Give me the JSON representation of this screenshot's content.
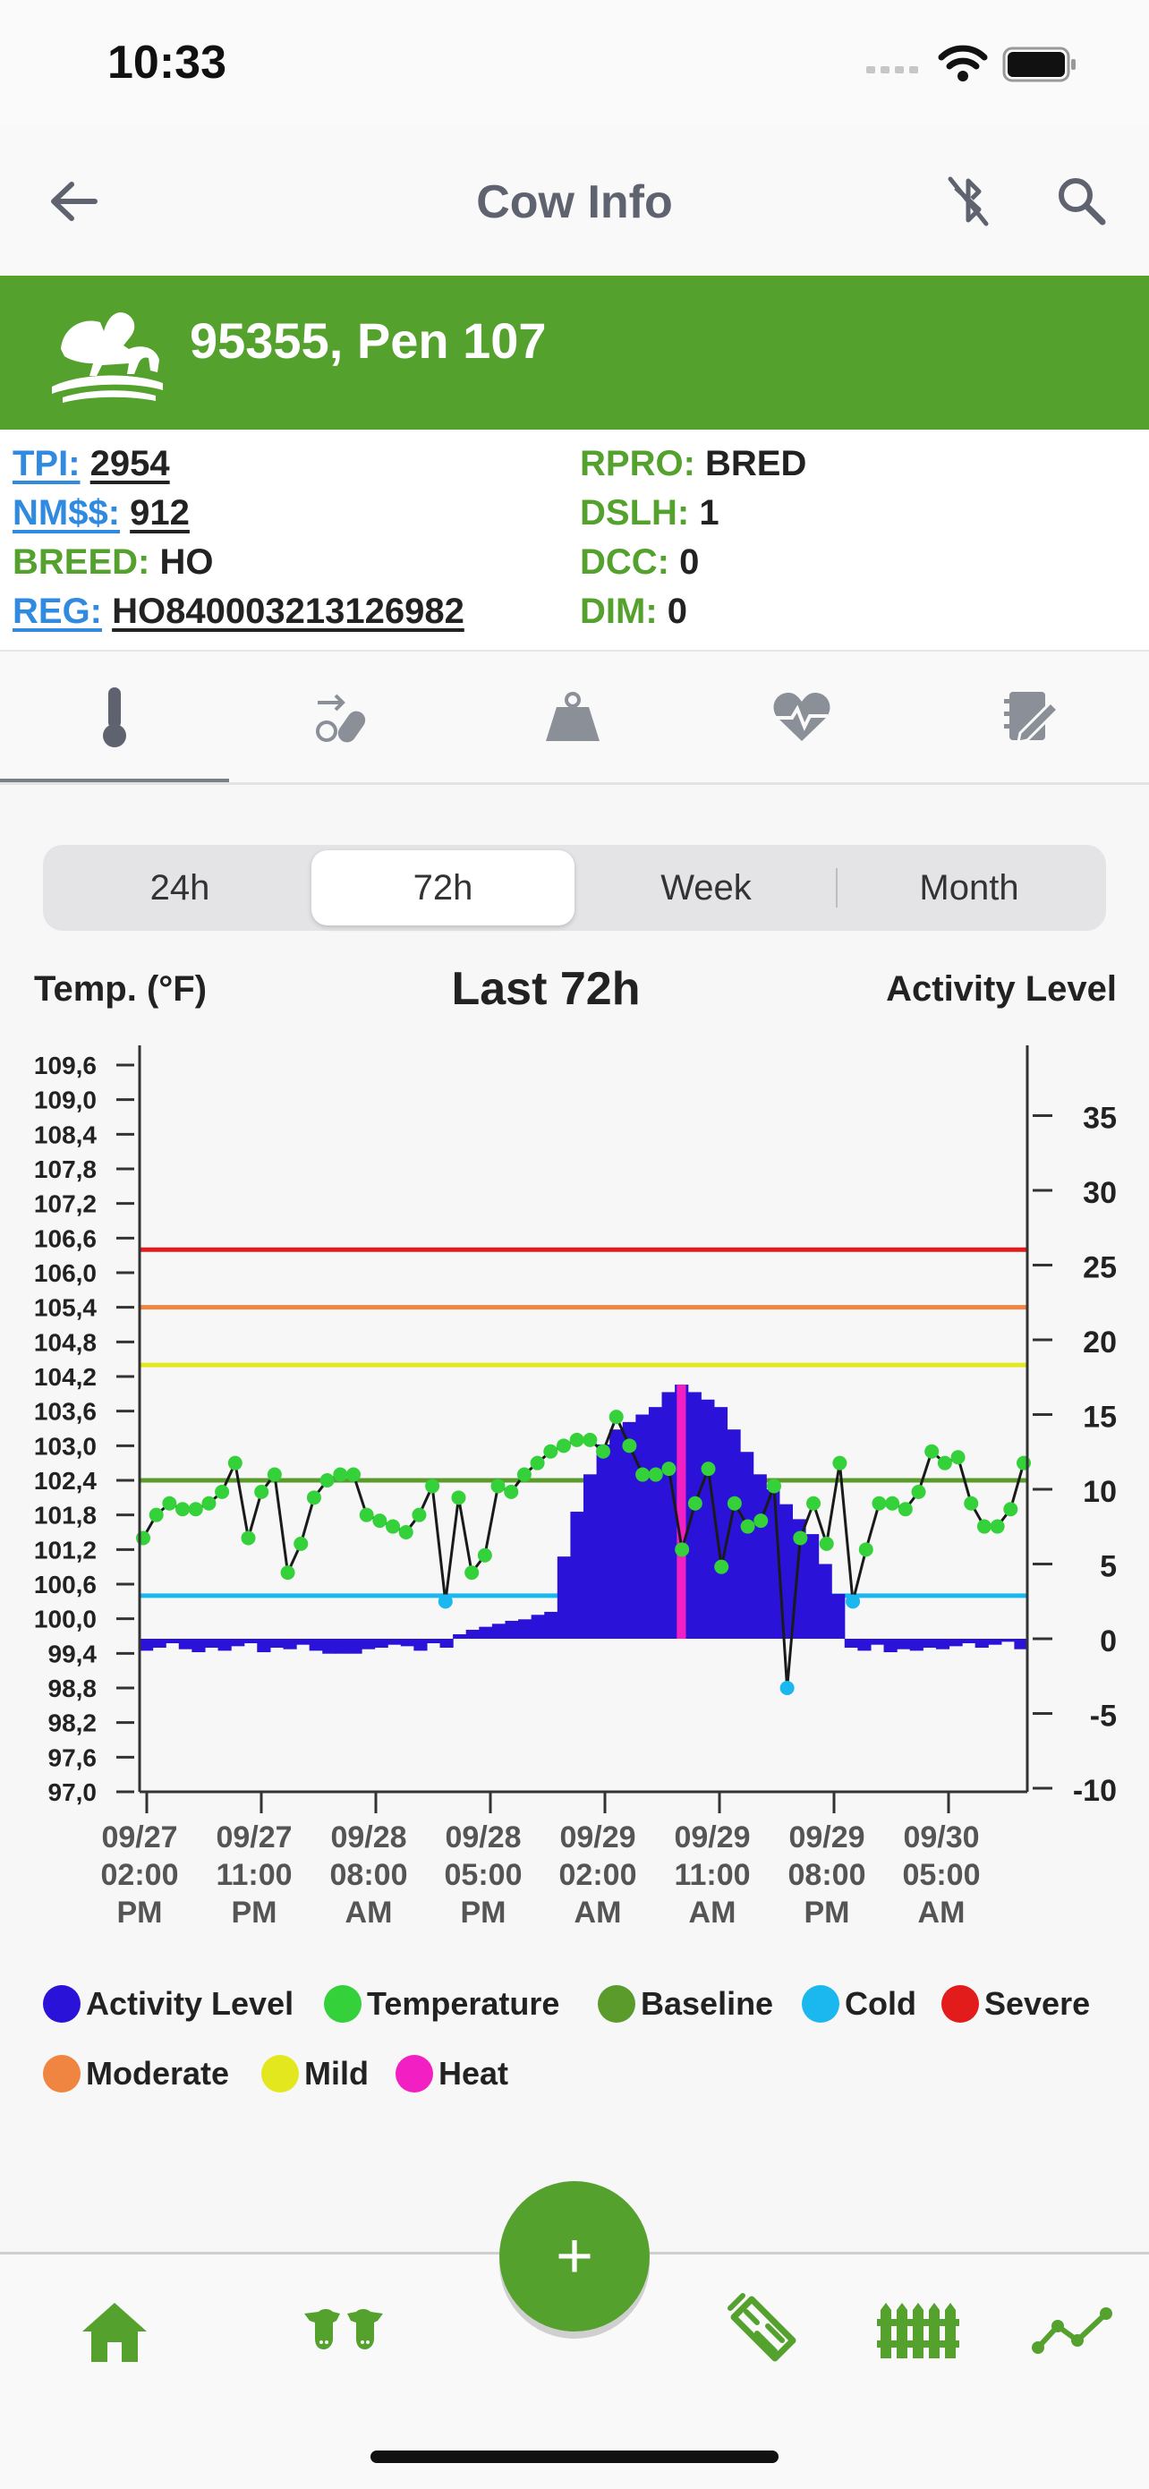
{
  "status_bar": {
    "time": "10:33"
  },
  "app_bar": {
    "title": "Cow Info"
  },
  "cow": {
    "title": "95355, Pen 107"
  },
  "info": {
    "tpi_label": "TPI:",
    "tpi_value": "2954",
    "nm_label": "NM$$:",
    "nm_value": "912",
    "breed_label": "BREED:",
    "breed_value": "HO",
    "reg_label": "REG:",
    "reg_value": "HO840003213126982",
    "rpro_label": "RPRO:",
    "rpro_value": "BRED",
    "dslh_label": "DSLH:",
    "dslh_value": "1",
    "dcc_label": "DCC:",
    "dcc_value": "0",
    "dim_label": "DIM:",
    "dim_value": "0"
  },
  "tabs": [
    {
      "icon": "thermometer-icon",
      "active": true
    },
    {
      "icon": "syringe-pill-icon",
      "active": false
    },
    {
      "icon": "weight-icon",
      "active": false
    },
    {
      "icon": "heart-pulse-icon",
      "active": false
    },
    {
      "icon": "notes-icon",
      "active": false
    }
  ],
  "ranges": {
    "items": [
      "24h",
      "72h",
      "Week",
      "Month"
    ],
    "selected": "72h"
  },
  "colors": {
    "brand_green": "#54a12e",
    "activity": "#2a12d8",
    "temperature": "#34d13a",
    "baseline": "#5a9b2c",
    "cold": "#1ab8ef",
    "severe": "#e21b1b",
    "moderate": "#f08441",
    "mild": "#e3e81e",
    "heat": "#f21fc2"
  },
  "chart_data": {
    "type": "line",
    "title": "Last 72h",
    "ylabel_left": "Temp. (°F)",
    "ylabel_right": "Activity Level",
    "y_left_ticks": [
      "109,6",
      "109,0",
      "108,4",
      "107,8",
      "107,2",
      "106,6",
      "106,0",
      "105,4",
      "104,8",
      "104,2",
      "103,6",
      "103,0",
      "102,4",
      "101,8",
      "101,2",
      "100,6",
      "100,0",
      "99,4",
      "98,8",
      "98,2",
      "97,6",
      "97,0"
    ],
    "y_left_range": [
      97.0,
      109.6
    ],
    "y_right_ticks": [
      "35",
      "30",
      "25",
      "20",
      "15",
      "10",
      "5",
      "0",
      "-5",
      "-10"
    ],
    "y_right_range": [
      -10,
      40
    ],
    "x_labels": [
      [
        "09/27",
        "02:00",
        "PM"
      ],
      [
        "09/27",
        "11:00",
        "PM"
      ],
      [
        "09/28",
        "08:00",
        "AM"
      ],
      [
        "09/28",
        "05:00",
        "PM"
      ],
      [
        "09/29",
        "02:00",
        "AM"
      ],
      [
        "09/29",
        "11:00",
        "AM"
      ],
      [
        "09/29",
        "08:00",
        "PM"
      ],
      [
        "09/30",
        "05:00",
        "AM"
      ]
    ],
    "thresholds": [
      {
        "name": "Severe",
        "value": 106.4
      },
      {
        "name": "Moderate",
        "value": 105.4
      },
      {
        "name": "Mild",
        "value": 104.4
      },
      {
        "name": "Baseline",
        "value": 102.4
      },
      {
        "name": "Cold",
        "value": 100.4
      }
    ],
    "series": [
      {
        "name": "Temperature",
        "values": [
          101.4,
          101.8,
          102.0,
          101.9,
          101.9,
          102.0,
          102.2,
          102.7,
          101.4,
          102.2,
          102.5,
          100.8,
          101.3,
          102.1,
          102.4,
          102.5,
          102.5,
          101.8,
          101.7,
          101.6,
          101.5,
          101.8,
          102.3,
          100.3,
          102.1,
          100.8,
          101.1,
          102.3,
          102.2,
          102.5,
          102.7,
          102.9,
          103.0,
          103.1,
          103.1,
          102.9,
          103.5,
          103.0,
          102.5,
          102.5,
          102.6,
          101.2,
          102.0,
          102.6,
          100.9,
          102.0,
          101.6,
          101.7,
          102.3,
          98.8,
          101.4,
          102.0,
          101.3,
          102.7,
          100.3,
          101.2,
          102.0,
          102.0,
          101.9,
          102.2,
          102.9,
          102.7,
          102.8,
          102.0,
          101.6,
          101.6,
          101.9,
          102.7
        ]
      },
      {
        "name": "Activity Level",
        "values": [
          -0.8,
          -0.6,
          -0.3,
          -0.7,
          -0.9,
          -0.6,
          -0.8,
          -0.5,
          -0.3,
          -0.9,
          -0.6,
          -0.7,
          -0.4,
          -0.8,
          -1.0,
          -1.0,
          -1.0,
          -0.7,
          -0.6,
          -0.4,
          -0.5,
          -0.8,
          -0.3,
          -0.6,
          0.3,
          0.6,
          0.8,
          1.0,
          1.2,
          1.3,
          1.6,
          1.8,
          5.5,
          8.5,
          11.0,
          13.0,
          14.0,
          14.5,
          15.0,
          15.5,
          16.5,
          17.0,
          16.5,
          16.0,
          15.5,
          14.0,
          12.5,
          11.0,
          10.0,
          9.0,
          8.0,
          7.0,
          5.0,
          3.0,
          -0.6,
          -0.8,
          -0.4,
          -0.9,
          -0.7,
          -0.8,
          -0.6,
          -0.7,
          -0.5,
          -0.3,
          -0.6,
          -0.4,
          -0.2,
          -0.7
        ]
      },
      {
        "name": "Heat",
        "values": [
          17.0
        ]
      }
    ]
  },
  "legend": [
    {
      "label": "Activity Level",
      "color": "#2a12d8"
    },
    {
      "label": "Temperature",
      "color": "#34d13a"
    },
    {
      "label": "Baseline",
      "color": "#5a9b2c"
    },
    {
      "label": "Cold",
      "color": "#1ab8ef"
    },
    {
      "label": "Severe",
      "color": "#e21b1b"
    },
    {
      "label": "Moderate",
      "color": "#f08441"
    },
    {
      "label": "Mild",
      "color": "#e3e81e"
    },
    {
      "label": "Heat",
      "color": "#f21fc2"
    }
  ],
  "bottom_nav": {
    "fab_label": "+"
  }
}
